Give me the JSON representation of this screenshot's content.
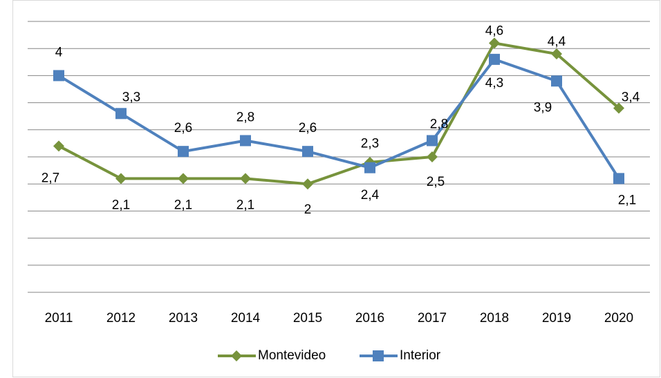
{
  "chart_data": {
    "type": "line",
    "categories": [
      "2011",
      "2012",
      "2013",
      "2014",
      "2015",
      "2016",
      "2017",
      "2018",
      "2019",
      "2020"
    ],
    "series": [
      {
        "name": "Montevideo",
        "color": "#77933c",
        "marker": "diamond",
        "values": [
          2.7,
          2.1,
          2.1,
          2.1,
          2,
          2.4,
          2.5,
          4.6,
          4.4,
          3.4
        ],
        "value_labels": [
          "2,7",
          "2,1",
          "2,1",
          "2,1",
          "2",
          "2,4",
          "2,5",
          "4,6",
          "4,4",
          "3,4"
        ]
      },
      {
        "name": "Interior",
        "color": "#4f81bd",
        "marker": "square",
        "values": [
          4,
          3.3,
          2.6,
          2.8,
          2.6,
          2.3,
          2.8,
          4.3,
          3.9,
          2.1
        ],
        "value_labels": [
          "4",
          "3,3",
          "2,6",
          "2,8",
          "2,6",
          "2,3",
          "2,8",
          "4,3",
          "3,9",
          "2,1"
        ]
      }
    ],
    "ylim": [
      0,
      5
    ],
    "yticks": [
      0,
      0.5,
      1,
      1.5,
      2,
      2.5,
      3,
      3.5,
      4,
      4.5,
      5
    ],
    "grid": true,
    "legend": "bottom"
  }
}
